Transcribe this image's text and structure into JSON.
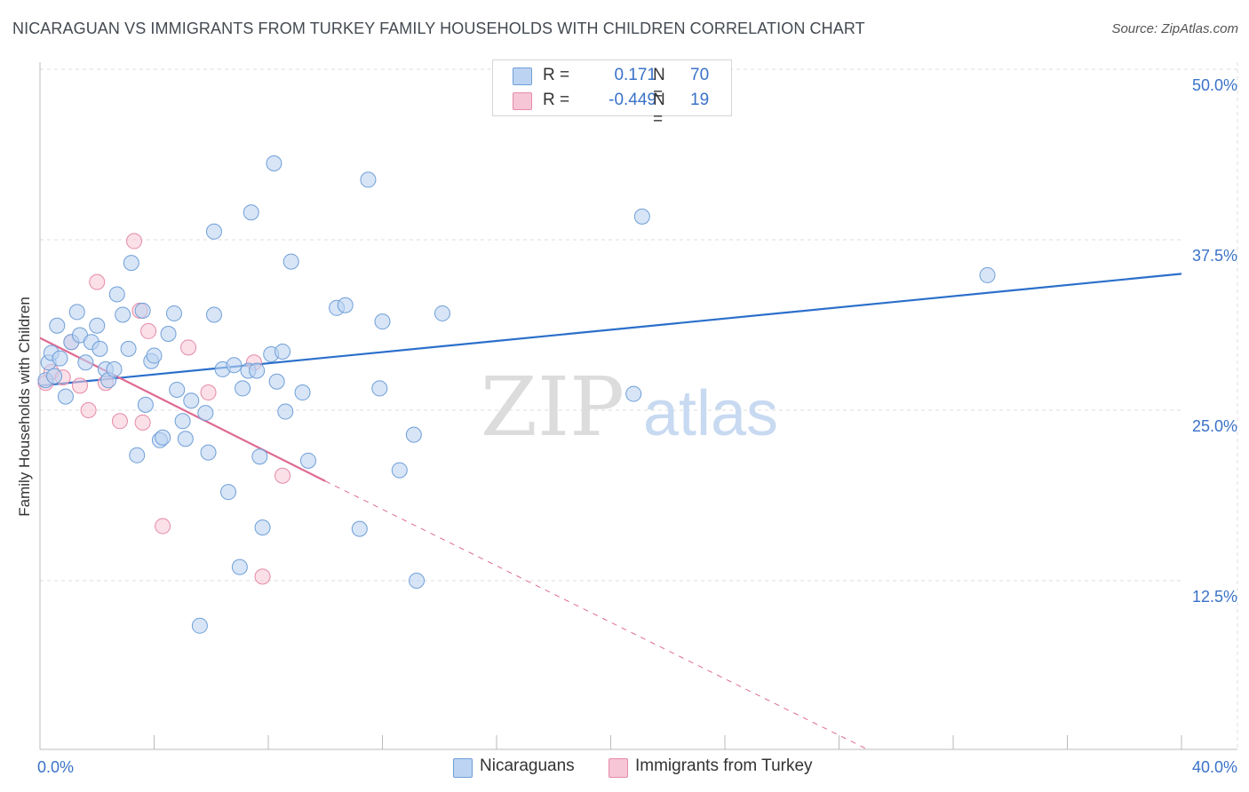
{
  "header": {
    "title": "NICARAGUAN VS IMMIGRANTS FROM TURKEY FAMILY HOUSEHOLDS WITH CHILDREN CORRELATION CHART",
    "source": "Source: ZipAtlas.com"
  },
  "watermark": {
    "zip": "ZIP",
    "atlas": "atlas"
  },
  "legend_top": {
    "rows": [
      {
        "r_label": "R =",
        "r_value": "0.171",
        "n_label": "N =",
        "n_value": "70"
      },
      {
        "r_label": "R =",
        "r_value": "-0.449",
        "n_label": "N =",
        "n_value": "19"
      }
    ]
  },
  "legend_bottom": {
    "items": [
      "Nicaraguans",
      "Immigrants from Turkey"
    ]
  },
  "chart_data": {
    "type": "scatter",
    "title": "NICARAGUAN VS IMMIGRANTS FROM TURKEY FAMILY HOUSEHOLDS WITH CHILDREN CORRELATION CHART",
    "xlabel": "",
    "ylabel": "Family Households with Children",
    "xlim": [
      0,
      40
    ],
    "ylim": [
      0,
      52
    ],
    "x_tick_labels": [
      "0.0%",
      "40.0%"
    ],
    "y_ticks": [
      12.5,
      25.0,
      37.5,
      50.0
    ],
    "y_tick_labels": [
      "12.5%",
      "25.0%",
      "37.5%",
      "50.0%"
    ],
    "grid": true,
    "legend_position": "top-center",
    "colors": {
      "nicaraguans_fill": "#bcd3f2",
      "nicaraguans_stroke": "#6f9fd8",
      "nicaraguans_line": "#2b6fcb",
      "turkey_fill": "#f7c6d6",
      "turkey_stroke": "#e58aa8",
      "turkey_line": "#de6b93",
      "tick_label": "#3a72c8",
      "grid": "#dddddd"
    },
    "series": [
      {
        "name": "Nicaraguans",
        "r": 0.171,
        "n": 70,
        "trend": {
          "x0": 0.0,
          "y0": 26.8,
          "x1": 40.0,
          "y1": 35.0
        },
        "points": [
          [
            0.2,
            27.2
          ],
          [
            0.3,
            28.5
          ],
          [
            0.4,
            29.2
          ],
          [
            0.5,
            27.5
          ],
          [
            0.6,
            31.2
          ],
          [
            0.7,
            28.8
          ],
          [
            0.9,
            26.0
          ],
          [
            1.1,
            30.0
          ],
          [
            1.3,
            32.2
          ],
          [
            1.4,
            30.5
          ],
          [
            1.6,
            28.5
          ],
          [
            1.8,
            30.0
          ],
          [
            2.0,
            31.2
          ],
          [
            2.1,
            29.5
          ],
          [
            2.3,
            28.0
          ],
          [
            2.4,
            27.2
          ],
          [
            2.6,
            28.0
          ],
          [
            2.7,
            33.5
          ],
          [
            2.9,
            32.0
          ],
          [
            3.1,
            29.5
          ],
          [
            3.2,
            35.8
          ],
          [
            3.4,
            21.7
          ],
          [
            3.6,
            32.3
          ],
          [
            3.7,
            25.4
          ],
          [
            3.9,
            28.6
          ],
          [
            4.0,
            29.0
          ],
          [
            4.2,
            22.8
          ],
          [
            4.3,
            23.0
          ],
          [
            4.5,
            30.6
          ],
          [
            4.7,
            32.1
          ],
          [
            4.8,
            26.5
          ],
          [
            5.0,
            24.2
          ],
          [
            5.1,
            22.9
          ],
          [
            5.3,
            25.7
          ],
          [
            5.6,
            9.2
          ],
          [
            5.8,
            24.8
          ],
          [
            5.9,
            21.9
          ],
          [
            6.1,
            32.0
          ],
          [
            6.1,
            38.1
          ],
          [
            6.4,
            28.0
          ],
          [
            6.6,
            19.0
          ],
          [
            6.8,
            28.3
          ],
          [
            7.0,
            13.5
          ],
          [
            7.1,
            26.6
          ],
          [
            7.3,
            27.9
          ],
          [
            7.4,
            39.5
          ],
          [
            7.6,
            27.9
          ],
          [
            7.7,
            21.6
          ],
          [
            7.8,
            16.4
          ],
          [
            8.1,
            29.1
          ],
          [
            8.2,
            43.1
          ],
          [
            8.3,
            27.1
          ],
          [
            8.5,
            29.3
          ],
          [
            8.6,
            24.9
          ],
          [
            8.8,
            35.9
          ],
          [
            9.2,
            26.3
          ],
          [
            9.4,
            21.3
          ],
          [
            10.4,
            32.5
          ],
          [
            10.7,
            32.7
          ],
          [
            11.2,
            16.3
          ],
          [
            11.5,
            41.9
          ],
          [
            11.9,
            26.6
          ],
          [
            12.0,
            31.5
          ],
          [
            12.6,
            20.6
          ],
          [
            13.1,
            23.2
          ],
          [
            13.2,
            12.5
          ],
          [
            14.1,
            32.1
          ],
          [
            20.8,
            26.2
          ],
          [
            21.1,
            39.2
          ],
          [
            33.2,
            34.9
          ]
        ]
      },
      {
        "name": "Immigrants from Turkey",
        "r": -0.449,
        "n": 19,
        "trend": {
          "x0": 0.0,
          "y0": 30.3,
          "x1": 10.0,
          "y1": 19.8,
          "dash_x1": 29.0,
          "dash_y1": 0.0
        },
        "points": [
          [
            0.2,
            27.0
          ],
          [
            0.4,
            27.8
          ],
          [
            0.8,
            27.4
          ],
          [
            1.1,
            30.0
          ],
          [
            1.4,
            26.8
          ],
          [
            1.7,
            25.0
          ],
          [
            2.0,
            34.4
          ],
          [
            2.3,
            27.0
          ],
          [
            2.8,
            24.2
          ],
          [
            3.3,
            37.4
          ],
          [
            3.5,
            32.3
          ],
          [
            3.6,
            24.1
          ],
          [
            3.8,
            30.8
          ],
          [
            4.3,
            16.5
          ],
          [
            5.2,
            29.6
          ],
          [
            5.9,
            26.3
          ],
          [
            7.5,
            28.5
          ],
          [
            7.8,
            12.8
          ],
          [
            8.5,
            20.2
          ]
        ]
      }
    ]
  }
}
